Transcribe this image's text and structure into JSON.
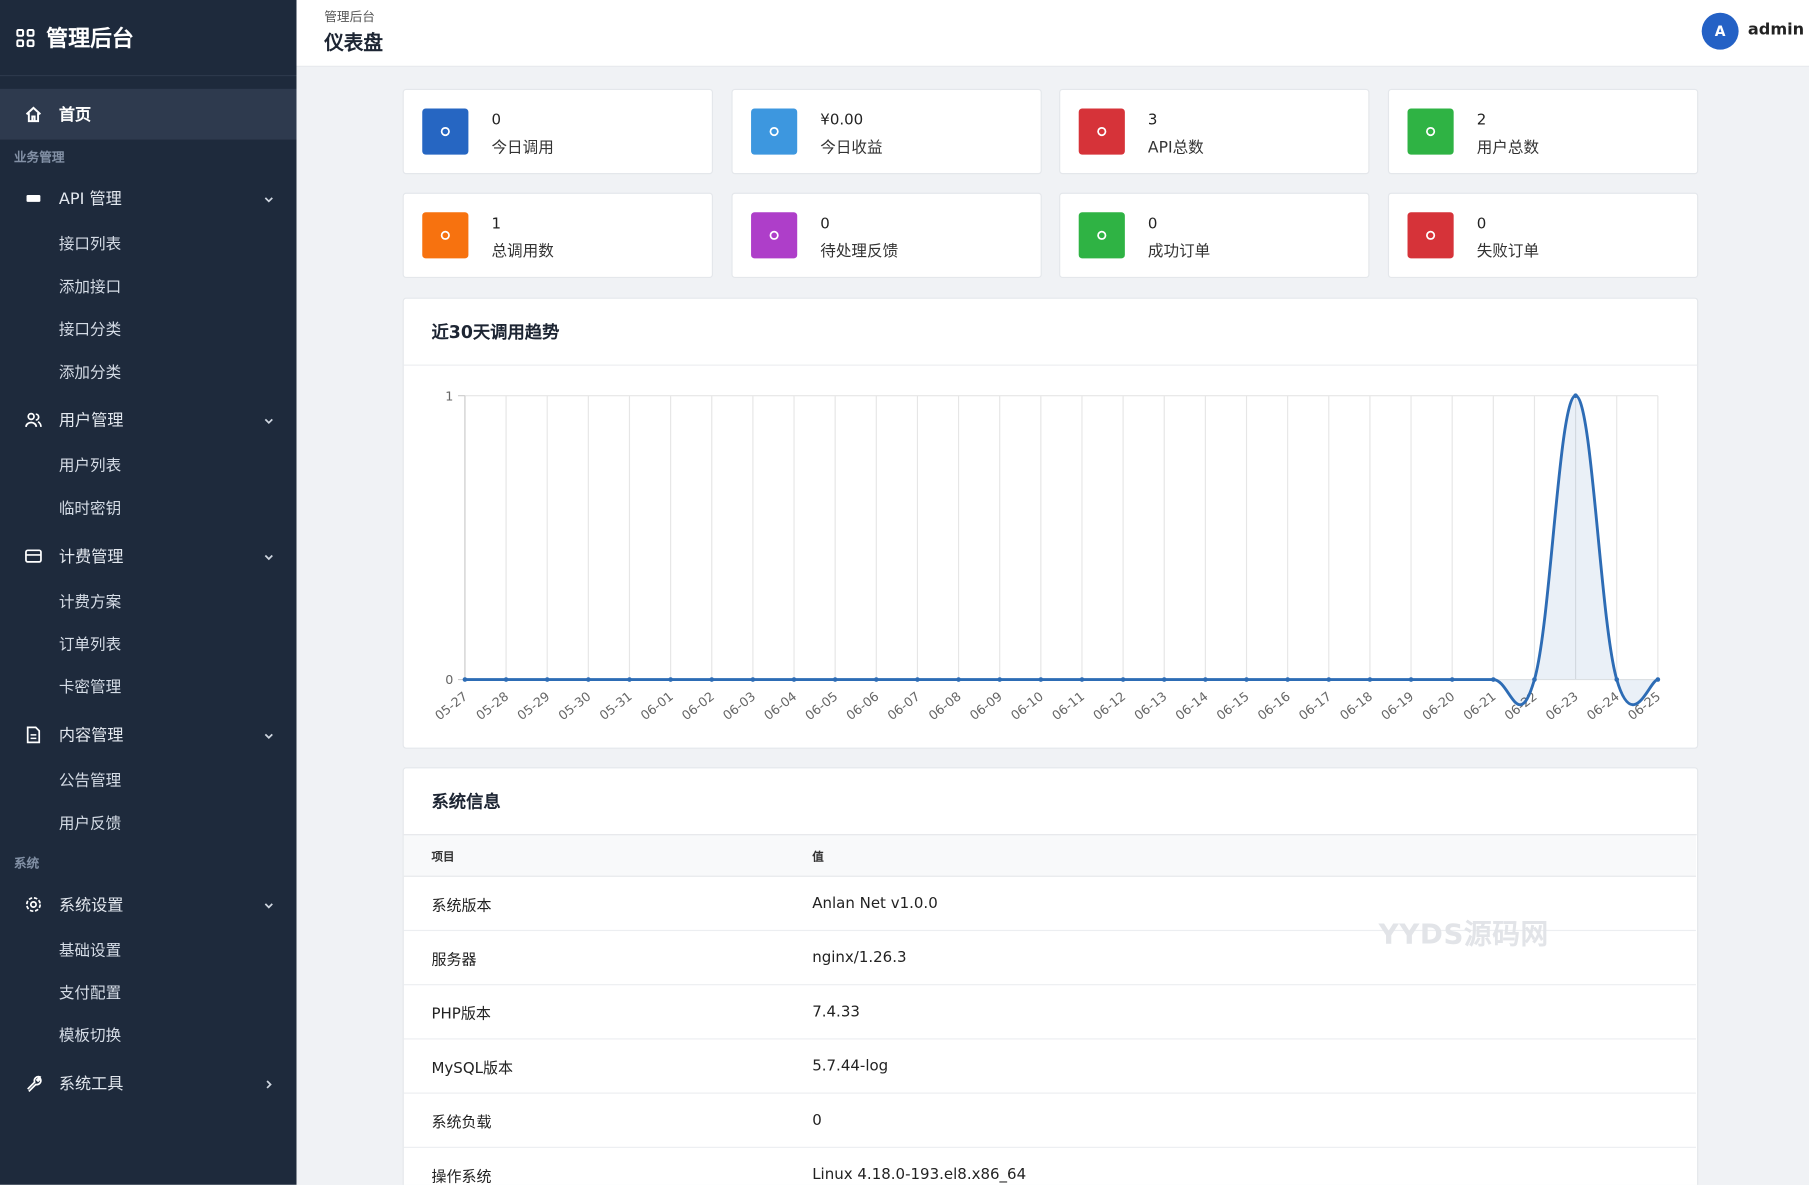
{
  "sidebar": {
    "brand": "管理后台",
    "home": "首页",
    "groups": [
      {
        "section": "业务管理",
        "items": [
          {
            "label": "API 管理",
            "children": [
              "接口列表",
              "添加接口",
              "接口分类",
              "添加分类"
            ]
          },
          {
            "label": "用户管理",
            "children": [
              "用户列表",
              "临时密钥"
            ]
          },
          {
            "label": "计费管理",
            "children": [
              "计费方案",
              "订单列表",
              "卡密管理"
            ]
          },
          {
            "label": "内容管理",
            "children": [
              "公告管理",
              "用户反馈"
            ]
          }
        ]
      },
      {
        "section": "系统",
        "items": [
          {
            "label": "系统设置",
            "children": [
              "基础设置",
              "支付配置",
              "模板切换"
            ]
          },
          {
            "label": "系统工具",
            "children": []
          }
        ]
      }
    ]
  },
  "header": {
    "breadcrumb": "管理后台",
    "title": "仪表盘",
    "avatar": "A",
    "user": "admin"
  },
  "stats": [
    {
      "value": 0,
      "label": "今日调用",
      "color": "#2666c2"
    },
    {
      "value": "¥0.00",
      "label": "今日收益",
      "color": "#3d97df"
    },
    {
      "value": 3,
      "label": "API总数",
      "color": "#d63339"
    },
    {
      "value": 2,
      "label": "用户总数",
      "color": "#2fb344"
    },
    {
      "value": 1,
      "label": "总调用数",
      "color": "#f7720f"
    },
    {
      "value": 0,
      "label": "待处理反馈",
      "color": "#ae3ec9"
    },
    {
      "value": 0,
      "label": "成功订单",
      "color": "#2fb344"
    },
    {
      "value": 0,
      "label": "失败订单",
      "color": "#d63339"
    }
  ],
  "chart_data": {
    "type": "line",
    "title": "近30天调用趋势",
    "categories": [
      "05-27",
      "05-28",
      "05-29",
      "05-30",
      "05-31",
      "06-01",
      "06-02",
      "06-03",
      "06-04",
      "06-05",
      "06-06",
      "06-07",
      "06-08",
      "06-09",
      "06-10",
      "06-11",
      "06-12",
      "06-13",
      "06-14",
      "06-15",
      "06-16",
      "06-17",
      "06-18",
      "06-19",
      "06-20",
      "06-21",
      "06-22",
      "06-23",
      "06-24",
      "06-25"
    ],
    "values": [
      0,
      0,
      0,
      0,
      0,
      0,
      0,
      0,
      0,
      0,
      0,
      0,
      0,
      0,
      0,
      0,
      0,
      0,
      0,
      0,
      0,
      0,
      0,
      0,
      0,
      0,
      0,
      1,
      0,
      0
    ],
    "color": "#2d6cb5",
    "ylim": [
      0,
      1
    ],
    "yticks": [
      0,
      1
    ],
    "grid": true
  },
  "system_info": {
    "title": "系统信息",
    "headers": [
      "项目",
      "值"
    ],
    "rows": [
      [
        "系统版本",
        "Anlan Net v1.0.0"
      ],
      [
        "服务器",
        "nginx/1.26.3"
      ],
      [
        "PHP版本",
        "7.4.33"
      ],
      [
        "MySQL版本",
        "5.7.44-log"
      ],
      [
        "系统负载",
        "0"
      ],
      [
        "操作系统",
        "Linux 4.18.0-193.el8.x86_64"
      ]
    ]
  },
  "watermark": "YYDS源码网"
}
